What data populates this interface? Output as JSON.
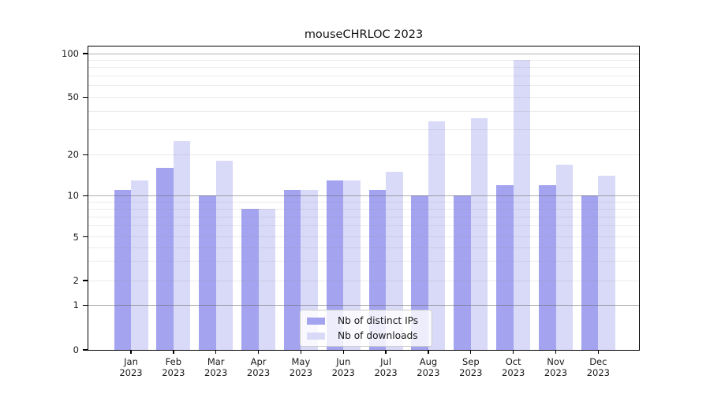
{
  "chart_data": {
    "type": "bar",
    "title": "mouseCHRLOC 2023",
    "categories": [
      "Jan",
      "Feb",
      "Mar",
      "Apr",
      "May",
      "Jun",
      "Jul",
      "Aug",
      "Sep",
      "Oct",
      "Nov",
      "Dec"
    ],
    "year_label": "2023",
    "series": [
      {
        "name": "Nb of distinct IPs",
        "color": "#a3a3f0",
        "values": [
          11,
          16,
          10,
          8,
          11,
          13,
          11,
          10,
          10,
          12,
          12,
          10
        ]
      },
      {
        "name": "Nb of downloads",
        "color": "#d9d9f8",
        "values": [
          13,
          25,
          18,
          8,
          11,
          13,
          15,
          34,
          36,
          90,
          17,
          14
        ]
      }
    ],
    "xlabel": "",
    "ylabel": "",
    "y_tick_labels": [
      "0",
      "1",
      "2",
      "5",
      "10",
      "20",
      "50",
      "100"
    ],
    "y_ticks": [
      0,
      1,
      2,
      5,
      10,
      20,
      50,
      100
    ],
    "major_gridlines": [
      1,
      10,
      100
    ],
    "minor_gridlines": [
      2,
      3,
      4,
      5,
      6,
      7,
      8,
      9,
      20,
      30,
      40,
      50,
      60,
      70,
      80,
      90
    ],
    "ylim": [
      0,
      112
    ],
    "y_scale": "log-like with linear segment below 1",
    "grid": "on",
    "legend_position": "lower center"
  },
  "colors": {
    "background": "#ffffff",
    "spine": "#000000",
    "bar_dark": "#a3a3f0",
    "bar_light": "#d9d9f8",
    "text": "#1a1a1a"
  }
}
